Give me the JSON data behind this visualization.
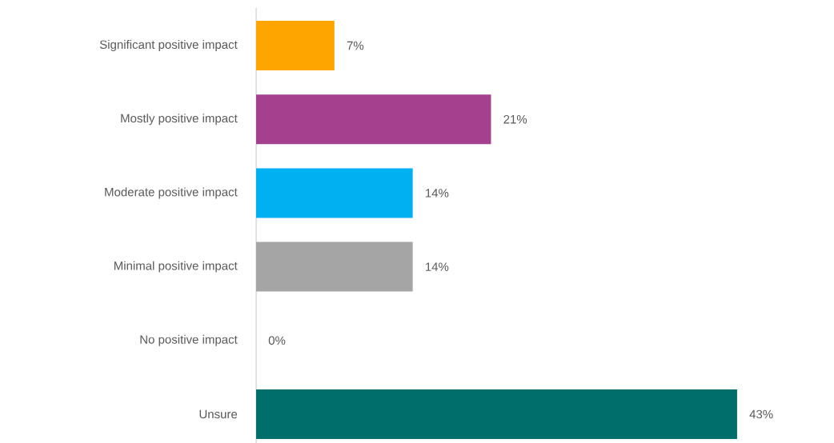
{
  "chart_data": {
    "type": "bar",
    "orientation": "horizontal",
    "categories": [
      "Significant positive impact",
      "Mostly positive impact",
      "Moderate positive impact",
      "Minimal positive impact",
      "No positive impact",
      "Unsure"
    ],
    "values": [
      7,
      21,
      14,
      14,
      0,
      43
    ],
    "colors": [
      "#ffa500",
      "#a5408f",
      "#00b0f0",
      "#a5a5a5",
      "#a5a5a5",
      "#006e6a"
    ],
    "value_labels": [
      "7%",
      "21%",
      "14%",
      "14%",
      "0%",
      "43%"
    ]
  }
}
